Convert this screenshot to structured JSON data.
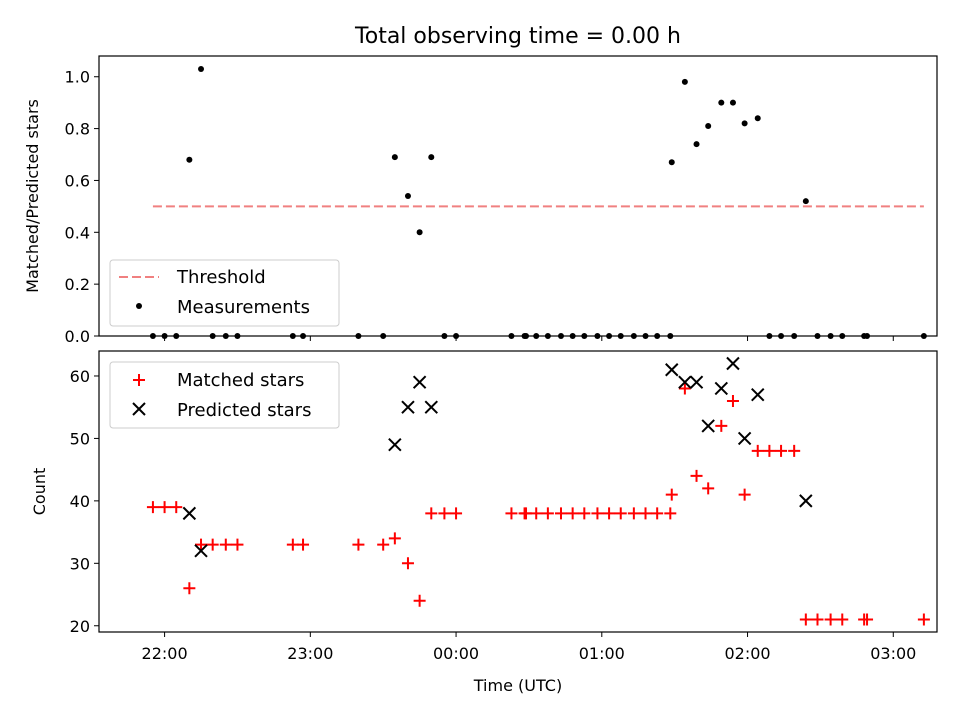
{
  "title": "Total observing time = 0.00 h",
  "chart_data": [
    {
      "type": "scatter",
      "ylabel": "Matched/Predicted stars",
      "xlabel": "",
      "x_unit": "hours since 21:00 UTC",
      "xlim": [
        0.55,
        6.3
      ],
      "ylim": [
        0,
        1.08
      ],
      "y_ticks": [
        0.0,
        0.2,
        0.4,
        0.6,
        0.8,
        1.0
      ],
      "y_tick_labels": [
        "0.0",
        "0.2",
        "0.4",
        "0.6",
        "0.8",
        "1.0"
      ],
      "x_ticks": [
        1,
        2,
        3,
        4,
        5,
        6
      ],
      "legend": "lower-left",
      "threshold": {
        "name": "Threshold",
        "y": 0.5,
        "x_start": 0.92,
        "x_end": 6.21,
        "color": "#f08080"
      },
      "series": [
        {
          "name": "Measurements",
          "color": "#000000",
          "points": [
            [
              0.92,
              0
            ],
            [
              1.0,
              0
            ],
            [
              1.08,
              0
            ],
            [
              1.17,
              0.68
            ],
            [
              1.25,
              1.03
            ],
            [
              1.33,
              0
            ],
            [
              1.42,
              0
            ],
            [
              1.5,
              0
            ],
            [
              1.88,
              0
            ],
            [
              1.95,
              0
            ],
            [
              2.33,
              0
            ],
            [
              2.5,
              0
            ],
            [
              2.58,
              0.69
            ],
            [
              2.67,
              0.54
            ],
            [
              2.75,
              0.4
            ],
            [
              2.83,
              0.69
            ],
            [
              2.92,
              0
            ],
            [
              3.0,
              0
            ],
            [
              3.38,
              0
            ],
            [
              3.47,
              0
            ],
            [
              3.48,
              0
            ],
            [
              3.55,
              0
            ],
            [
              3.63,
              0
            ],
            [
              3.72,
              0
            ],
            [
              3.8,
              0
            ],
            [
              3.88,
              0
            ],
            [
              3.97,
              0
            ],
            [
              4.05,
              0
            ],
            [
              4.13,
              0
            ],
            [
              4.22,
              0
            ],
            [
              4.3,
              0
            ],
            [
              4.38,
              0
            ],
            [
              4.47,
              0
            ],
            [
              4.48,
              0.67
            ],
            [
              4.57,
              0.98
            ],
            [
              4.65,
              0.74
            ],
            [
              4.73,
              0.81
            ],
            [
              4.82,
              0.9
            ],
            [
              4.9,
              0.9
            ],
            [
              4.98,
              0.82
            ],
            [
              5.07,
              0.84
            ],
            [
              5.15,
              0
            ],
            [
              5.23,
              0
            ],
            [
              5.32,
              0
            ],
            [
              5.4,
              0.52
            ],
            [
              5.48,
              0
            ],
            [
              5.57,
              0
            ],
            [
              5.65,
              0
            ],
            [
              5.8,
              0
            ],
            [
              5.82,
              0
            ],
            [
              6.21,
              0
            ]
          ]
        }
      ]
    },
    {
      "type": "scatter",
      "ylabel": "Count",
      "xlabel": "Time (UTC)",
      "x_unit": "hours since 21:00 UTC",
      "xlim": [
        0.55,
        6.3
      ],
      "ylim": [
        19,
        64
      ],
      "y_ticks": [
        20,
        30,
        40,
        50,
        60
      ],
      "y_tick_labels": [
        "20",
        "30",
        "40",
        "50",
        "60"
      ],
      "x_ticks": [
        1,
        2,
        3,
        4,
        5,
        6
      ],
      "x_tick_labels": [
        "22:00",
        "23:00",
        "00:00",
        "01:00",
        "02:00",
        "03:00"
      ],
      "legend": "top-left",
      "series": [
        {
          "name": "Matched stars",
          "marker": "plus",
          "color": "#ff0000",
          "points": [
            [
              0.92,
              39
            ],
            [
              1.0,
              39
            ],
            [
              1.08,
              39
            ],
            [
              1.17,
              26
            ],
            [
              1.25,
              33
            ],
            [
              1.33,
              33
            ],
            [
              1.42,
              33
            ],
            [
              1.5,
              33
            ],
            [
              1.88,
              33
            ],
            [
              1.95,
              33
            ],
            [
              2.33,
              33
            ],
            [
              2.5,
              33
            ],
            [
              2.58,
              34
            ],
            [
              2.67,
              30
            ],
            [
              2.75,
              24
            ],
            [
              2.83,
              38
            ],
            [
              2.92,
              38
            ],
            [
              3.0,
              38
            ],
            [
              3.38,
              38
            ],
            [
              3.47,
              38
            ],
            [
              3.48,
              38
            ],
            [
              3.55,
              38
            ],
            [
              3.63,
              38
            ],
            [
              3.72,
              38
            ],
            [
              3.8,
              38
            ],
            [
              3.88,
              38
            ],
            [
              3.97,
              38
            ],
            [
              4.05,
              38
            ],
            [
              4.13,
              38
            ],
            [
              4.22,
              38
            ],
            [
              4.3,
              38
            ],
            [
              4.38,
              38
            ],
            [
              4.47,
              38
            ],
            [
              4.48,
              41
            ],
            [
              4.57,
              58
            ],
            [
              4.65,
              44
            ],
            [
              4.73,
              42
            ],
            [
              4.82,
              52
            ],
            [
              4.9,
              56
            ],
            [
              4.98,
              41
            ],
            [
              5.07,
              48
            ],
            [
              5.15,
              48
            ],
            [
              5.23,
              48
            ],
            [
              5.32,
              48
            ],
            [
              5.4,
              21
            ],
            [
              5.48,
              21
            ],
            [
              5.57,
              21
            ],
            [
              5.65,
              21
            ],
            [
              5.8,
              21
            ],
            [
              5.82,
              21
            ],
            [
              6.21,
              21
            ]
          ]
        },
        {
          "name": "Predicted stars",
          "marker": "x",
          "color": "#000000",
          "points": [
            [
              1.17,
              38
            ],
            [
              1.25,
              32
            ],
            [
              2.58,
              49
            ],
            [
              2.67,
              55
            ],
            [
              2.75,
              59
            ],
            [
              2.83,
              55
            ],
            [
              4.48,
              61
            ],
            [
              4.57,
              59
            ],
            [
              4.65,
              59
            ],
            [
              4.73,
              52
            ],
            [
              4.82,
              58
            ],
            [
              4.9,
              62
            ],
            [
              4.98,
              50
            ],
            [
              5.07,
              57
            ],
            [
              5.4,
              40
            ]
          ]
        }
      ]
    }
  ]
}
